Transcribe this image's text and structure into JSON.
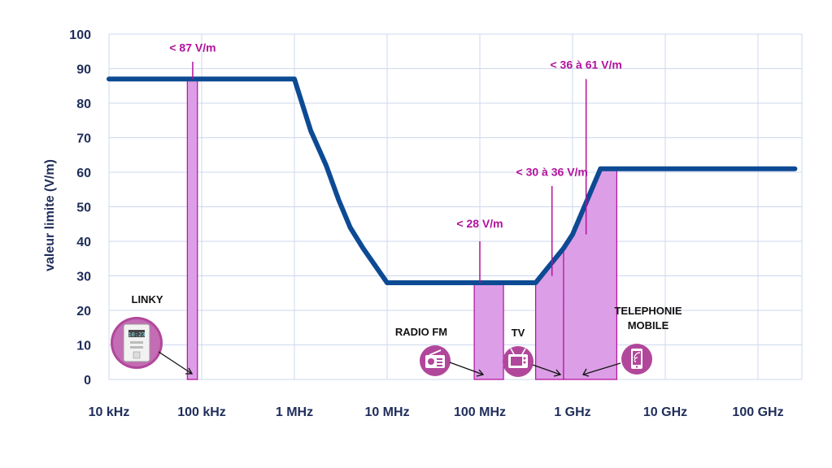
{
  "colors": {
    "limit_line": "#0d4a94",
    "band_fill": "#dc9ee6",
    "band_stroke": "#b3119c",
    "annotation": "#b3119c",
    "grid": "#cdd7ee",
    "axis_text": "#1f2d5a",
    "icon_bg": "#b1479b"
  },
  "chart_data": {
    "type": "line",
    "x_scale": "log",
    "xlim_hz": [
      10000,
      250000000000
    ],
    "ylim": [
      0,
      100
    ],
    "y_ticks": [
      0,
      10,
      20,
      30,
      40,
      50,
      60,
      70,
      80,
      90,
      100
    ],
    "x_ticks": [
      {
        "value": 10000,
        "label": "10 kHz"
      },
      {
        "value": 100000,
        "label": "100 kHz"
      },
      {
        "value": 1000000,
        "label": "1 MHz"
      },
      {
        "value": 10000000,
        "label": "10 MHz"
      },
      {
        "value": 100000000,
        "label": "100 MHz"
      },
      {
        "value": 1000000000,
        "label": "1 GHz"
      },
      {
        "value": 10000000000,
        "label": "10 GHz"
      },
      {
        "value": 100000000000,
        "label": "100 GHz"
      }
    ],
    "ylabel": "valeur limite (V/m)",
    "grid": true,
    "series": [
      {
        "points": [
          [
            10000,
            87
          ],
          [
            1000000,
            87
          ],
          [
            1500000,
            72
          ],
          [
            2200000,
            62
          ],
          [
            3000000,
            52
          ],
          [
            4000000,
            44
          ],
          [
            5500000,
            38
          ],
          [
            10000000,
            28
          ],
          [
            400000000,
            28
          ],
          [
            800000000,
            38
          ],
          [
            1000000000,
            42
          ],
          [
            2000000000,
            61
          ],
          [
            250000000000,
            61
          ]
        ]
      }
    ],
    "bands": [
      {
        "id": "linky",
        "f_lo": 70000,
        "f_hi": 90000,
        "top": 87
      },
      {
        "id": "fm",
        "f_lo": 87000000,
        "f_hi": 180000000,
        "top": 28
      },
      {
        "id": "tv",
        "f_lo": 400000000,
        "f_hi": 800000000,
        "top": "curve"
      },
      {
        "id": "mobile",
        "f_lo": 800000000,
        "f_hi": 3000000000,
        "top": "curve"
      }
    ],
    "annotations": [
      {
        "id": "a87",
        "text": "< 87 V/m",
        "f": 80000,
        "y": 95
      },
      {
        "id": "a28",
        "text": "< 28  V/m",
        "f": 100000000,
        "y": 44
      },
      {
        "id": "a30",
        "text": "< 30 à 36 V/m",
        "f": 600000000,
        "y": 59
      },
      {
        "id": "a36",
        "text": "< 36 à 61 V/m",
        "f": 1400000000,
        "y": 90
      }
    ]
  },
  "labels": {
    "linky": "LINKY",
    "radio_fm": "RADIO FM",
    "tv": "TV",
    "mobile_line1": "TELEPHONIE",
    "mobile_line2": "MOBILE",
    "meter_screen": "10:23"
  },
  "icons": {
    "linky": "electric-meter-icon",
    "radio": "radio-icon",
    "tv": "tv-icon",
    "mobile": "smartphone-icon"
  }
}
